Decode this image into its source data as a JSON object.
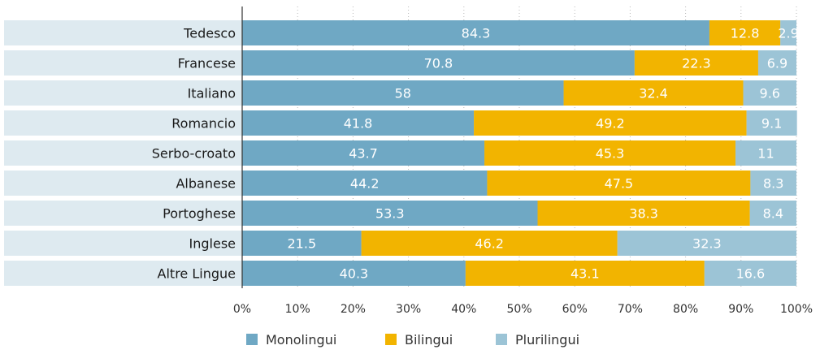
{
  "chart_data": {
    "type": "bar",
    "orientation": "horizontal",
    "stacked": true,
    "categories": [
      "Tedesco",
      "Francese",
      "Italiano",
      "Romancio",
      "Serbo-croato",
      "Albanese",
      "Portoghese",
      "Inglese",
      "Altre Lingue"
    ],
    "series": [
      {
        "name": "Monolingui",
        "color": "#6fa8c4",
        "values": [
          84.3,
          70.8,
          58,
          41.8,
          43.7,
          44.2,
          53.3,
          21.5,
          40.3
        ]
      },
      {
        "name": "Bilingui",
        "color": "#f2b400",
        "values": [
          12.8,
          22.3,
          32.4,
          49.2,
          45.3,
          47.5,
          38.3,
          46.2,
          43.1
        ]
      },
      {
        "name": "Plurilingui",
        "color": "#9cc4d6",
        "values": [
          2.9,
          6.9,
          9.6,
          9.1,
          11,
          8.3,
          8.4,
          32.3,
          16.6
        ]
      }
    ],
    "value_labels": [
      [
        "84.3",
        "70.8",
        "58",
        "41.8",
        "43.7",
        "44.2",
        "53.3",
        "21.5",
        "40.3"
      ],
      [
        "12.8",
        "22.3",
        "32.4",
        "49.2",
        "45.3",
        "47.5",
        "38.3",
        "46.2",
        "43.1"
      ],
      [
        "2.9",
        "6.9",
        "9.6",
        "9.1",
        "11",
        "8.3",
        "8.4",
        "32.3",
        "16.6"
      ]
    ],
    "x_ticks": [
      "0%",
      "10%",
      "20%",
      "30%",
      "40%",
      "50%",
      "60%",
      "70%",
      "80%",
      "90%",
      "100%"
    ],
    "xlim": [
      0,
      100
    ],
    "grid": "vertical dotted",
    "legend_position": "bottom",
    "row_band_color": "#deeaf0"
  }
}
